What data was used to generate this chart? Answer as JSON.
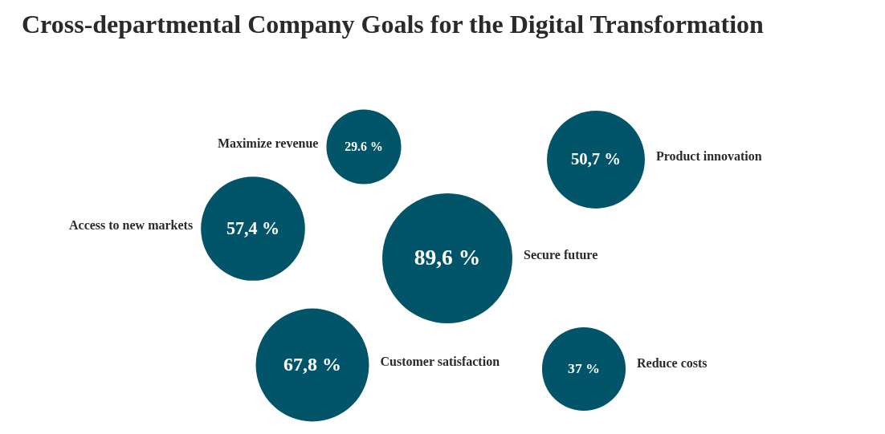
{
  "chart_data": {
    "type": "other",
    "title": "Cross-departmental Company Goals for the Digital Transformation",
    "categories": [
      "Maximize revenue",
      "Product innovation",
      "Access to new markets",
      "Secure future",
      "Customer satisfaction",
      "Reduce costs"
    ],
    "values": [
      29.6,
      50.7,
      57.4,
      89.6,
      67.8,
      37
    ],
    "value_labels": [
      "29.6 %",
      "50,7 %",
      "57,4 %",
      "89,6 %",
      "67,8 %",
      "37 %"
    ],
    "color": "#025468"
  }
}
